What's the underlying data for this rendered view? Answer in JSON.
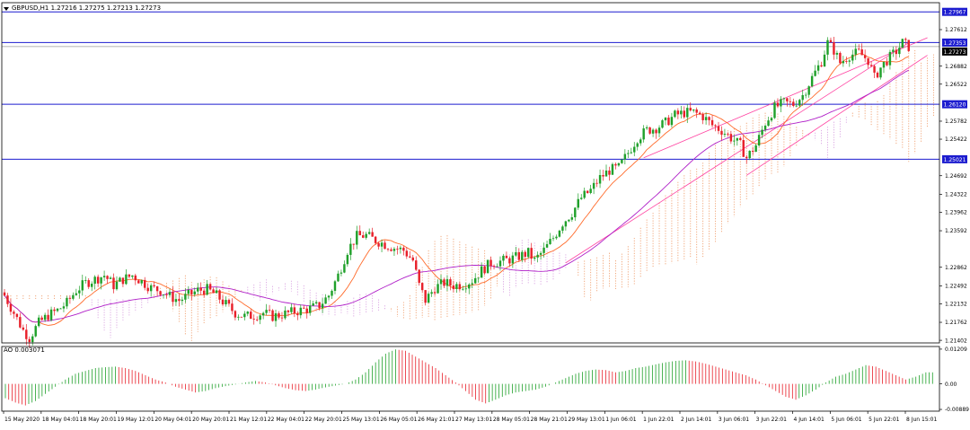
{
  "header": {
    "symbol_line": "GBPUSD,H1  1.27216 1.27275 1.27213 1.27273",
    "ao_label": "AO 0.003071"
  },
  "colors": {
    "bull": "#1fa02a",
    "bear": "#e8202a",
    "ma_fast": "#ff6a2a",
    "ma_slow": "#b020c8",
    "cloud_a": "#f0a070",
    "cloud_b": "#d8a0e0",
    "hline": "#1c1ccf",
    "channel": "#ff40a0",
    "badge_bg": "#1c1ccf",
    "badge_fg": "#ffffff",
    "axis": "#000000"
  },
  "price_axis": {
    "ticks": [
      "1.27612",
      "1.26882",
      "1.26522",
      "1.25782",
      "1.25422",
      "1.24692",
      "1.24322",
      "1.23962",
      "1.23592",
      "1.22862",
      "1.22492",
      "1.22132",
      "1.21762",
      "1.21402"
    ],
    "ymin": 1.2135,
    "ymax": 1.2815
  },
  "horizontal_lines": [
    {
      "price": 1.27967,
      "label": "1.27967"
    },
    {
      "price": 1.27353,
      "label": "1.27353"
    },
    {
      "price": 1.27273,
      "label": "1.27273",
      "style": "current"
    },
    {
      "price": 1.2612,
      "label": "1.26120"
    },
    {
      "price": 1.25021,
      "label": "1.25021"
    }
  ],
  "ao_axis": {
    "ticks": [
      "0.01209",
      "0.00",
      "-0.00889"
    ],
    "ymin": -0.0095,
    "ymax": 0.013
  },
  "time_axis": {
    "labels": [
      "15 May 2020",
      "18 May 04:01",
      "18 May 20:01",
      "19 May 12:01",
      "20 May 04:01",
      "20 May 20:01",
      "21 May 12:01",
      "22 May 04:01",
      "22 May 20:01",
      "25 May 13:01",
      "26 May 05:01",
      "26 May 21:01",
      "27 May 13:01",
      "28 May 05:01",
      "28 May 21:01",
      "29 May 13:01",
      "1 Jun 06:01",
      "1 Jun 22:01",
      "2 Jun 14:01",
      "3 Jun 06:01",
      "3 Jun 22:01",
      "4 Jun 14:01",
      "5 Jun 06:01",
      "5 Jun 22:01",
      "8 Jun 15:01"
    ]
  },
  "chart_data": {
    "type": "candlestick",
    "title": "GBPUSD,H1",
    "ohlc_header": {
      "open": 1.27216,
      "high": 1.27275,
      "low": 1.27213,
      "close": 1.27273
    },
    "close_path": [
      [
        0,
        1.223
      ],
      [
        3,
        1.2195
      ],
      [
        6,
        1.216
      ],
      [
        8,
        1.2145
      ],
      [
        11,
        1.2175
      ],
      [
        14,
        1.219
      ],
      [
        17,
        1.22
      ],
      [
        20,
        1.2215
      ],
      [
        23,
        1.224
      ],
      [
        26,
        1.2255
      ],
      [
        29,
        1.2262
      ],
      [
        32,
        1.227
      ],
      [
        35,
        1.225
      ],
      [
        38,
        1.2262
      ],
      [
        41,
        1.227
      ],
      [
        44,
        1.2258
      ],
      [
        47,
        1.2245
      ],
      [
        50,
        1.224
      ],
      [
        53,
        1.2228
      ],
      [
        56,
        1.222
      ],
      [
        59,
        1.223
      ],
      [
        62,
        1.224
      ],
      [
        65,
        1.2242
      ],
      [
        68,
        1.223
      ],
      [
        71,
        1.2212
      ],
      [
        74,
        1.2195
      ],
      [
        77,
        1.2188
      ],
      [
        80,
        1.219
      ],
      [
        83,
        1.2195
      ],
      [
        86,
        1.2188
      ],
      [
        89,
        1.2192
      ],
      [
        92,
        1.2196
      ],
      [
        95,
        1.22
      ],
      [
        98,
        1.2204
      ],
      [
        101,
        1.221
      ],
      [
        104,
        1.223
      ],
      [
        107,
        1.227
      ],
      [
        110,
        1.232
      ],
      [
        113,
        1.2348
      ],
      [
        116,
        1.235
      ],
      [
        119,
        1.234
      ],
      [
        122,
        1.2332
      ],
      [
        125,
        1.2325
      ],
      [
        128,
        1.232
      ],
      [
        131,
        1.23
      ],
      [
        133,
        1.225
      ],
      [
        135,
        1.222
      ],
      [
        138,
        1.2245
      ],
      [
        141,
        1.2255
      ],
      [
        144,
        1.225
      ],
      [
        147,
        1.2252
      ],
      [
        150,
        1.226
      ],
      [
        153,
        1.228
      ],
      [
        156,
        1.2295
      ],
      [
        159,
        1.2298
      ],
      [
        162,
        1.2302
      ],
      [
        165,
        1.2308
      ],
      [
        168,
        1.2315
      ],
      [
        170,
        1.23
      ],
      [
        173,
        1.232
      ],
      [
        176,
        1.2345
      ],
      [
        179,
        1.2375
      ],
      [
        182,
        1.2395
      ],
      [
        185,
        1.2425
      ],
      [
        188,
        1.244
      ],
      [
        191,
        1.2465
      ],
      [
        194,
        1.248
      ],
      [
        197,
        1.2485
      ],
      [
        200,
        1.2515
      ],
      [
        203,
        1.2545
      ],
      [
        206,
        1.256
      ],
      [
        209,
        1.2565
      ],
      [
        212,
        1.2575
      ],
      [
        215,
        1.259
      ],
      [
        218,
        1.2595
      ],
      [
        221,
        1.2596
      ],
      [
        224,
        1.2588
      ],
      [
        227,
        1.257
      ],
      [
        230,
        1.256
      ],
      [
        233,
        1.2545
      ],
      [
        236,
        1.253
      ],
      [
        238,
        1.2505
      ],
      [
        241,
        1.253
      ],
      [
        244,
        1.2575
      ],
      [
        247,
        1.2605
      ],
      [
        250,
        1.2615
      ],
      [
        253,
        1.2612
      ],
      [
        256,
        1.263
      ],
      [
        259,
        1.2665
      ],
      [
        262,
        1.2698
      ],
      [
        264,
        1.2735
      ],
      [
        266,
        1.272
      ],
      [
        268,
        1.2695
      ],
      [
        271,
        1.271
      ],
      [
        274,
        1.2715
      ],
      [
        277,
        1.27
      ],
      [
        279,
        1.2665
      ],
      [
        281,
        1.2685
      ],
      [
        283,
        1.27
      ],
      [
        286,
        1.2718
      ],
      [
        288,
        1.2735
      ],
      [
        290,
        1.2727
      ]
    ],
    "ao_values": [
      -0.005,
      -0.0065,
      -0.0075,
      -0.006,
      -0.0035,
      -0.001,
      0.0015,
      0.0035,
      0.0045,
      0.0055,
      0.0058,
      0.006,
      0.0055,
      0.0045,
      0.003,
      0.0015,
      0.0005,
      -0.001,
      -0.002,
      -0.003,
      -0.0025,
      -0.0015,
      -0.0008,
      -0.0002,
      0.0005,
      0.001,
      0.0005,
      -0.0005,
      -0.0015,
      -0.0022,
      -0.0025,
      -0.002,
      -0.0012,
      -0.0006,
      0.0,
      0.0015,
      0.004,
      0.0075,
      0.0105,
      0.012,
      0.0115,
      0.0095,
      0.0075,
      0.0055,
      0.003,
      0.0005,
      -0.0025,
      -0.0055,
      -0.0068,
      -0.0055,
      -0.004,
      -0.003,
      -0.0025,
      -0.002,
      -0.001,
      0.0005,
      0.002,
      0.0035,
      0.0045,
      0.005,
      0.0048,
      0.004,
      0.0045,
      0.0055,
      0.006,
      0.0068,
      0.0075,
      0.008,
      0.0082,
      0.0078,
      0.007,
      0.006,
      0.005,
      0.004,
      0.003,
      0.0015,
      -0.0005,
      -0.0025,
      -0.0045,
      -0.0055,
      -0.004,
      -0.002,
      0.0005,
      0.0025,
      0.0035,
      0.005,
      0.0065,
      0.006,
      0.0045,
      0.003,
      0.0015,
      0.0025,
      0.004
    ]
  }
}
